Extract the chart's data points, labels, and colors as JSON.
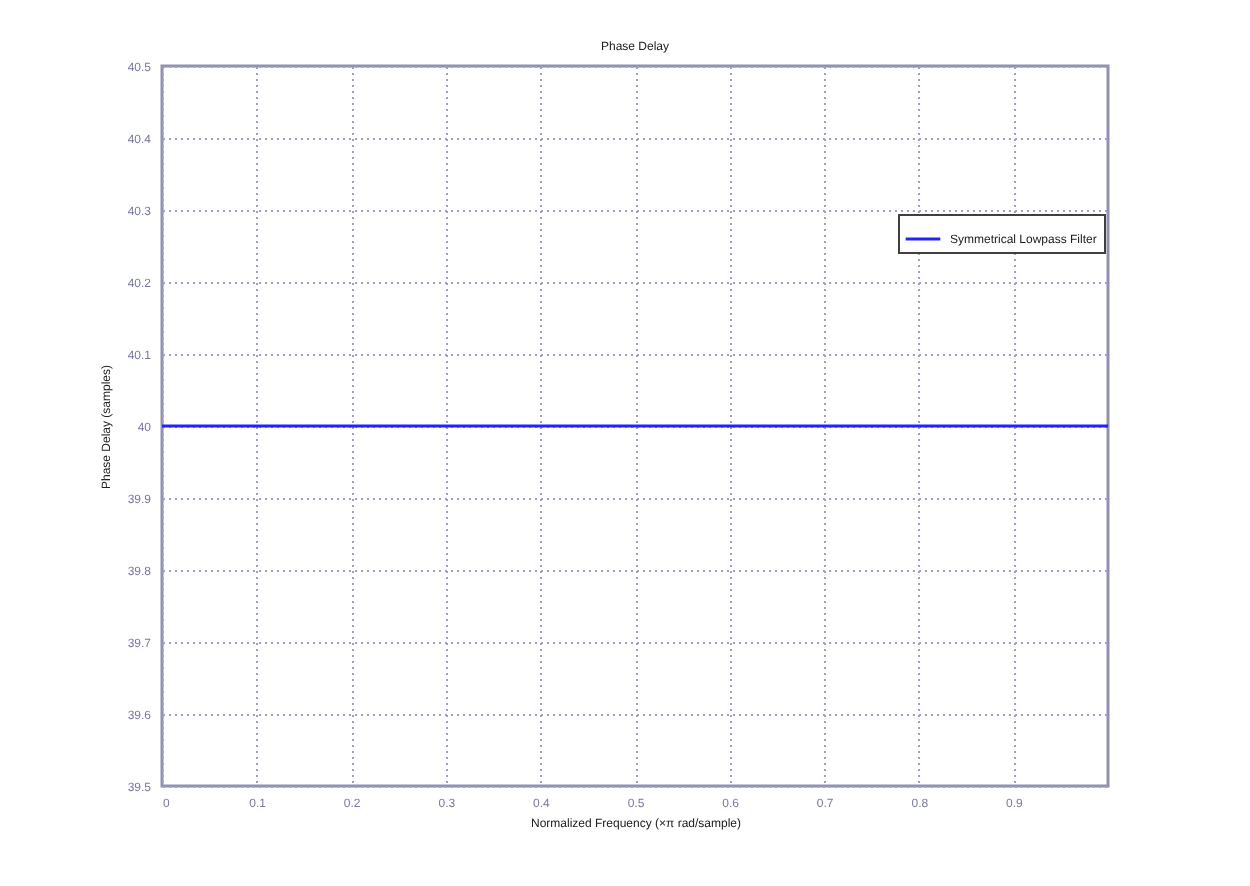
{
  "chart_data": {
    "type": "line",
    "title": "Phase Delay",
    "xlabel": "Normalized Frequency (×π rad/sample)",
    "ylabel": "Phase Delay (samples)",
    "x": [
      0,
      1
    ],
    "series": [
      {
        "name": "Symmetrical Lowpass Filter",
        "color": "#2222ff",
        "values": [
          40,
          40
        ]
      }
    ],
    "xlim": [
      0,
      1
    ],
    "ylim": [
      39.5,
      40.5
    ],
    "xticks": [
      0,
      0.1,
      0.2,
      0.3,
      0.4,
      0.5,
      0.6,
      0.7,
      0.8,
      0.9
    ],
    "yticks": [
      39.5,
      39.6,
      39.7,
      39.8,
      39.9,
      40,
      40.1,
      40.2,
      40.3,
      40.4,
      40.5
    ],
    "grid": true,
    "legend": "top right",
    "line_style": "solid"
  }
}
